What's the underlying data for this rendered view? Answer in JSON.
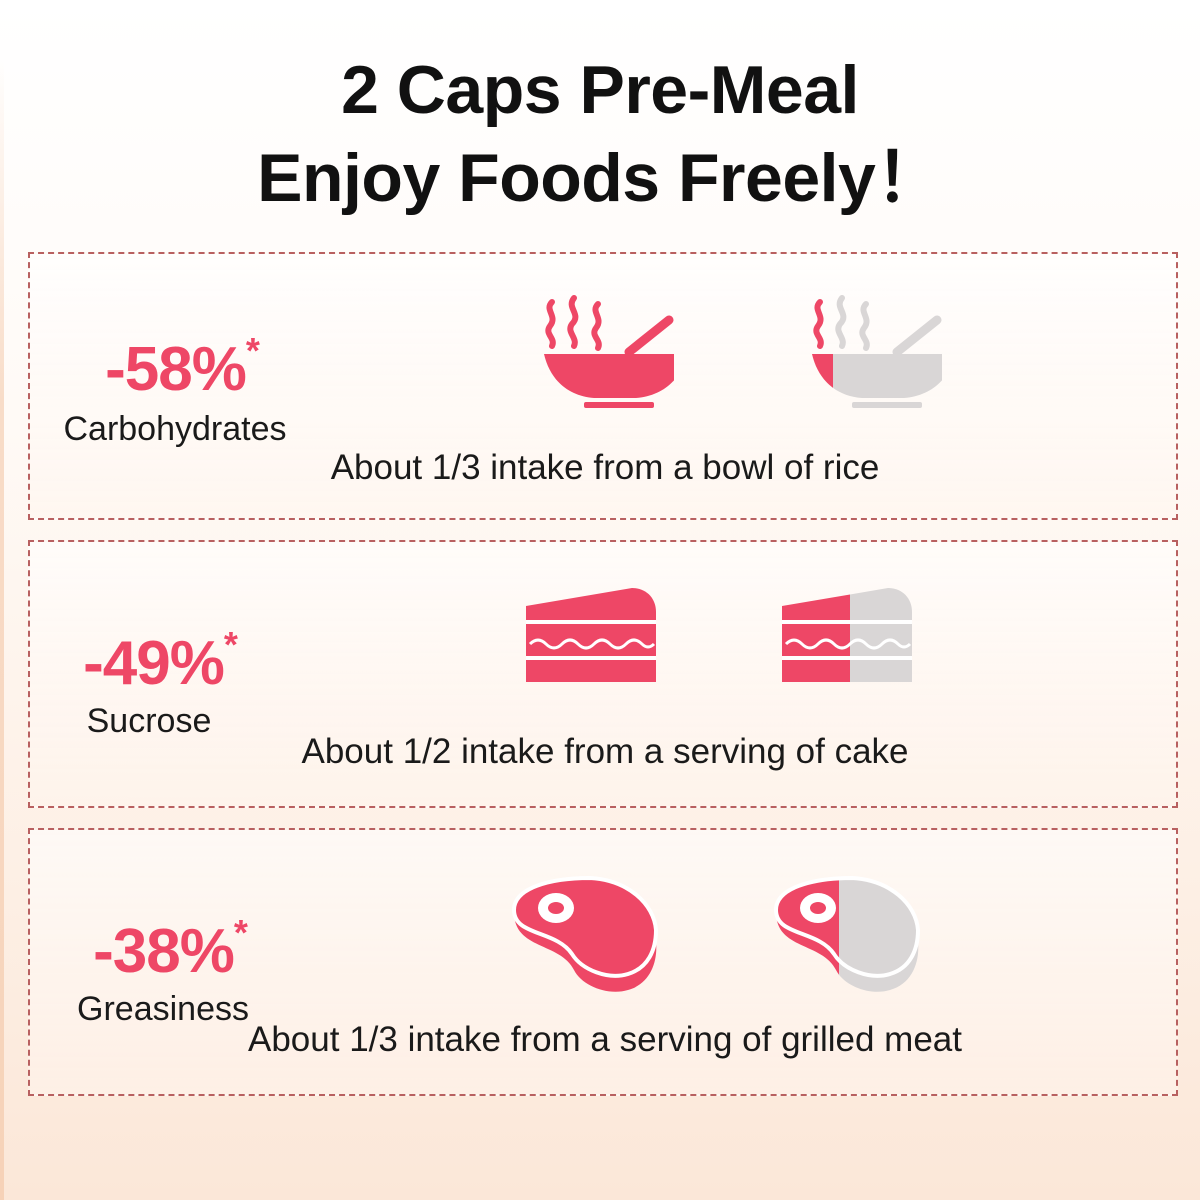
{
  "title": {
    "line1": "2 Caps Pre-Meal",
    "line2": "Enjoy Foods Freely！"
  },
  "colors": {
    "accent": "#ee4766",
    "muted": "#d9d6d6",
    "border": "#b86060"
  },
  "rows": [
    {
      "percent": "-58%",
      "asterisk": "*",
      "nutrient": "Carbohydrates",
      "caption": "About 1/3 intake from a bowl of rice",
      "full_icon": "rice-bowl-icon",
      "partial_icon": "rice-bowl-partial-icon",
      "fraction": 0.33
    },
    {
      "percent": "-49%",
      "asterisk": "*",
      "nutrient": "Sucrose",
      "caption": "About 1/2 intake from a serving of cake",
      "full_icon": "cake-slice-icon",
      "partial_icon": "cake-slice-partial-icon",
      "fraction": 0.5
    },
    {
      "percent": "-38%",
      "asterisk": "*",
      "nutrient": "Greasiness",
      "caption": "About 1/3 intake from a serving of grilled meat",
      "full_icon": "steak-icon",
      "partial_icon": "steak-partial-icon",
      "fraction": 0.33
    }
  ]
}
